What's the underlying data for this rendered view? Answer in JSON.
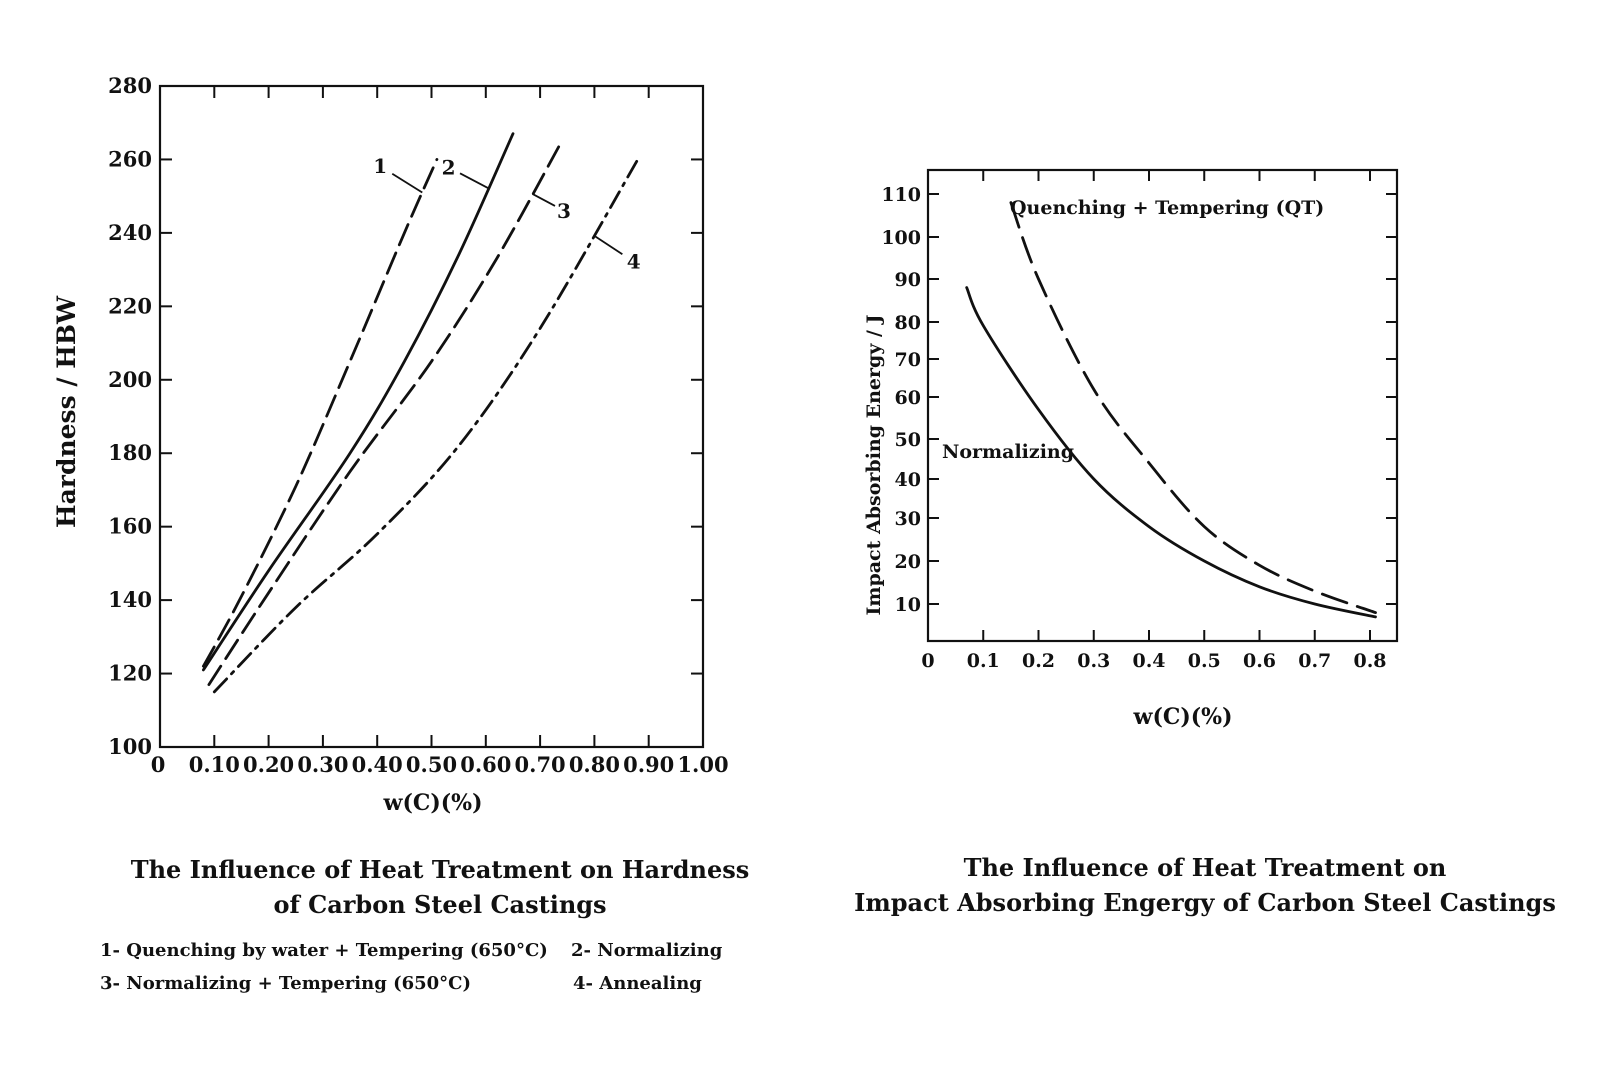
{
  "chart_data": [
    {
      "type": "line",
      "ylabel": "Hardness / HBW",
      "xlabel": "w(C)(%)",
      "xlim": [
        0,
        1.0
      ],
      "ylim": [
        100,
        280
      ],
      "xticks": [
        "0",
        "0.10",
        "0.20",
        "0.30",
        "0.40",
        "0.50",
        "0.60",
        "0.70",
        "0.80",
        "0.90",
        "1.00"
      ],
      "yticks": [
        "100",
        "120",
        "140",
        "160",
        "180",
        "200",
        "220",
        "240",
        "260",
        "280"
      ],
      "caption": [
        "The Influence of Heat Treatment on Hardness",
        "of Carbon Steel Castings"
      ],
      "legend": [
        "1- Quenching by water + Tempering (650°C)",
        "2- Normalizing",
        "3- Normalizing + Tempering (650°C)",
        "4- Annealing"
      ],
      "series": [
        {
          "name": "1",
          "style": "dashed",
          "x": [
            0.08,
            0.15,
            0.25,
            0.35,
            0.45,
            0.51
          ],
          "y": [
            122,
            141,
            171,
            205,
            240,
            260
          ]
        },
        {
          "name": "2",
          "style": "solid",
          "x": [
            0.08,
            0.2,
            0.35,
            0.45,
            0.55,
            0.65
          ],
          "y": [
            121,
            148,
            180,
            205,
            234,
            267
          ]
        },
        {
          "name": "3",
          "style": "dashed",
          "x": [
            0.09,
            0.2,
            0.35,
            0.5,
            0.62,
            0.74
          ],
          "y": [
            117,
            142,
            175,
            205,
            233,
            265
          ]
        },
        {
          "name": "4",
          "style": "dash-dot",
          "x": [
            0.1,
            0.25,
            0.4,
            0.55,
            0.7,
            0.88
          ],
          "y": [
            115,
            138,
            158,
            182,
            214,
            260
          ]
        }
      ]
    },
    {
      "type": "line",
      "ylabel": "Impact Absorbing Energy / J",
      "xlabel": "w(C)(%)",
      "xlim": [
        0,
        0.8
      ],
      "yticks": [
        "10",
        "20",
        "30",
        "40",
        "50",
        "60",
        "70",
        "80",
        "90",
        "100",
        "110"
      ],
      "xticks": [
        "0",
        "0.1",
        "0.2",
        "0.3",
        "0.4",
        "0.5",
        "0.6",
        "0.7",
        "0.8"
      ],
      "caption": [
        "The Influence of Heat Treatment on",
        "Impact Absorbing Engergy of Carbon Steel Castings"
      ],
      "series": [
        {
          "name": "Quenching + Tempering (QT)",
          "style": "dashed",
          "x": [
            0.15,
            0.2,
            0.3,
            0.4,
            0.5,
            0.6,
            0.7,
            0.81
          ],
          "y": [
            108,
            90,
            62,
            44,
            28,
            19,
            13,
            8
          ]
        },
        {
          "name": "Normalizing",
          "style": "solid",
          "x": [
            0.07,
            0.1,
            0.2,
            0.3,
            0.4,
            0.5,
            0.6,
            0.7,
            0.81
          ],
          "y": [
            88,
            79,
            57,
            40,
            28,
            20,
            14,
            10,
            7
          ]
        }
      ]
    }
  ]
}
